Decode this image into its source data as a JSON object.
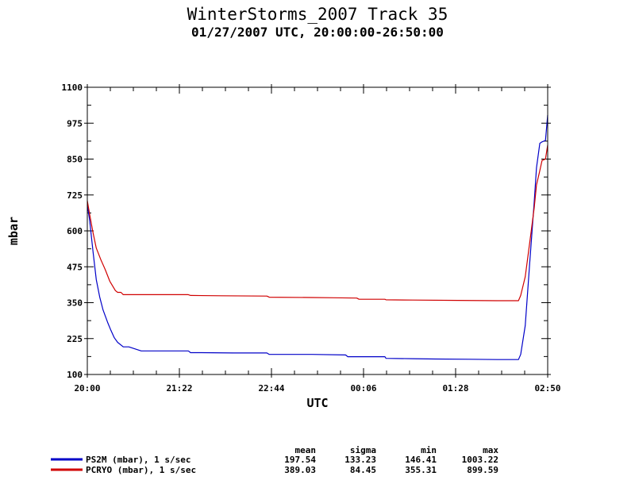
{
  "chart_data": {
    "type": "line",
    "title": "WinterStorms_2007 Track 35",
    "subtitle": "01/27/2007 UTC, 20:00:00-26:50:00",
    "xlabel": "UTC",
    "ylabel": "mbar",
    "x_ticks": [
      "20:00",
      "21:22",
      "22:44",
      "00:06",
      "01:28",
      "02:50"
    ],
    "x_range_minutes": [
      0,
      410
    ],
    "y_ticks": [
      "100",
      "225",
      "350",
      "475",
      "600",
      "725",
      "850",
      "975",
      "1100"
    ],
    "ylim": [
      100,
      1100
    ],
    "grid": false,
    "legend_position": "bottom-left",
    "stats_headers": [
      "mean",
      "sigma",
      "min",
      "max"
    ],
    "series": [
      {
        "name": "PS2M (mbar), 1 s/sec",
        "color": "#0000c8",
        "stats": [
          "197.54",
          "133.23",
          "146.41",
          "1003.22"
        ],
        "x": [
          0,
          2,
          5,
          8,
          11,
          14,
          18,
          21,
          24,
          27,
          32,
          37,
          48,
          60,
          80,
          90,
          92,
          100,
          130,
          160,
          162,
          180,
          200,
          230,
          232,
          250,
          265,
          266,
          290,
          310,
          340,
          365,
          372,
          384,
          386,
          390,
          394,
          398,
          400,
          403,
          405,
          408,
          410
        ],
        "y": [
          690,
          640,
          530,
          430,
          370,
          325,
          282,
          254,
          228,
          212,
          196,
          196,
          182,
          182,
          182,
          182,
          176,
          176,
          175,
          175,
          170,
          170,
          170,
          168,
          162,
          162,
          162,
          156,
          155,
          154,
          153,
          152,
          152,
          152,
          170,
          270,
          490,
          700,
          820,
          905,
          910,
          915,
          1003
        ]
      },
      {
        "name": "PCRYO (mbar), 1 s/sec",
        "color": "#d00000",
        "stats": [
          "389.03",
          "84.45",
          "355.31",
          "899.59"
        ],
        "x": [
          0,
          2,
          5,
          8,
          12,
          16,
          20,
          25,
          27,
          30,
          32,
          40,
          60,
          90,
          92,
          120,
          160,
          162,
          200,
          220,
          240,
          242,
          265,
          266,
          290,
          330,
          365,
          372,
          384,
          386,
          390,
          394,
          398,
          400,
          403,
          405,
          408,
          410
        ],
        "y": [
          705,
          660,
          595,
          540,
          500,
          465,
          425,
          392,
          386,
          386,
          378,
          378,
          378,
          378,
          375,
          374,
          373,
          369,
          368,
          367,
          366,
          362,
          362,
          360,
          359,
          358,
          357,
          357,
          357,
          375,
          440,
          560,
          680,
          760,
          810,
          845,
          850,
          899
        ]
      }
    ]
  }
}
